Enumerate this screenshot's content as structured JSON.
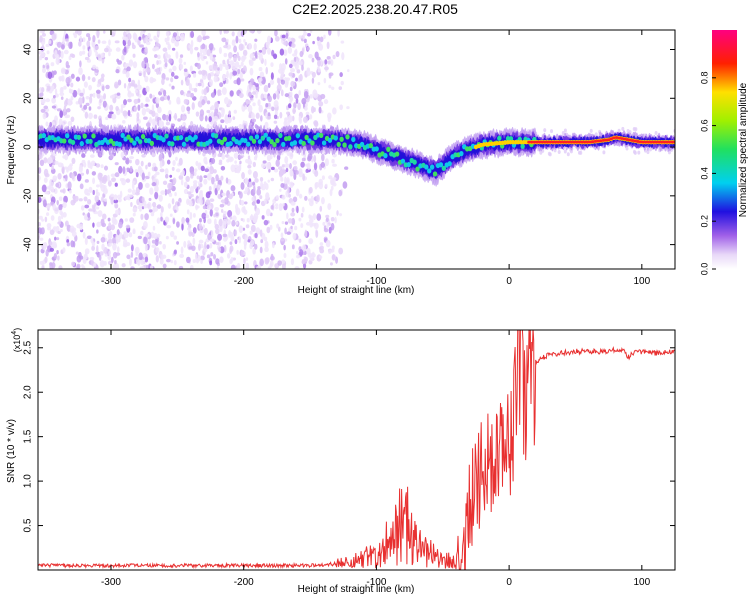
{
  "title": "C2E2.2025.238.20.47.R05",
  "colors": {
    "snr_line": "#e83030",
    "axis": "#000000",
    "background": "#ffffff"
  },
  "chart_data": [
    {
      "type": "heatmap",
      "name": "spectrogram",
      "xlabel": "Height of straight line (km)",
      "ylabel": "Frequency (Hz)",
      "xlim": [
        -355,
        125
      ],
      "ylim": [
        -50,
        48
      ],
      "xticks": [
        -300,
        -200,
        -100,
        0,
        100
      ],
      "xtick_labels": [
        "-300",
        "-200",
        "-100",
        "0",
        "100"
      ],
      "yticks": [
        -40,
        -20,
        0,
        20,
        40
      ],
      "ytick_labels": [
        "-40",
        "-20",
        "0",
        "20",
        "40"
      ],
      "colorbar": {
        "label": "Normalized spectral amplitude",
        "range": [
          0.0,
          1.0
        ],
        "ticks": [
          0.0,
          0.2,
          0.4,
          0.6,
          0.8
        ],
        "tick_labels": [
          "0.0",
          "0.2",
          "0.4",
          "0.6",
          "0.8"
        ],
        "colormap": "rainbow"
      },
      "noise_region_x": [
        -355,
        -140
      ],
      "ridge_frequency": {
        "x": [
          -355,
          -300,
          -250,
          -200,
          -150,
          -130,
          -110,
          -90,
          -75,
          -65,
          -55,
          -45,
          -35,
          -20,
          0,
          20,
          40,
          60,
          75,
          80,
          90,
          100,
          125
        ],
        "hz": [
          3,
          3,
          3,
          3,
          3,
          3,
          1,
          -3,
          -6,
          -8,
          -10,
          -5,
          -2,
          1,
          2,
          2,
          2,
          2,
          3,
          4,
          3,
          2,
          2
        ]
      }
    },
    {
      "type": "line",
      "name": "snr",
      "xlabel": "Height of straight line (km)",
      "ylabel": "SNR (10 * v/v)",
      "y_scale_label": "(x10",
      "y_scale_exp": "4",
      "xlim": [
        -355,
        125
      ],
      "ylim": [
        0,
        2.7
      ],
      "xticks": [
        -300,
        -200,
        -100,
        0,
        100
      ],
      "xtick_labels": [
        "-300",
        "-200",
        "-100",
        "0",
        "100"
      ],
      "yticks": [
        0.5,
        1.0,
        1.5,
        2.0,
        2.5
      ],
      "ytick_labels": [
        "0.5",
        "1.0",
        "1.5",
        "2.0",
        "2.5"
      ],
      "series": [
        {
          "name": "SNR",
          "x": [
            -355,
            -150,
            -120,
            -100,
            -90,
            -80,
            -70,
            -60,
            -50,
            -40,
            -33,
            -30,
            -20,
            -10,
            0,
            8,
            15,
            20,
            30,
            50,
            70,
            85,
            90,
            95,
            100,
            110,
            125
          ],
          "y": [
            0.05,
            0.05,
            0.08,
            0.18,
            0.35,
            0.55,
            0.4,
            0.2,
            0.1,
            0.12,
            0.35,
            0.8,
            1.1,
            1.3,
            1.7,
            2.0,
            2.2,
            2.35,
            2.42,
            2.46,
            2.46,
            2.48,
            2.4,
            2.47,
            2.45,
            2.44,
            2.46
          ]
        }
      ]
    }
  ]
}
